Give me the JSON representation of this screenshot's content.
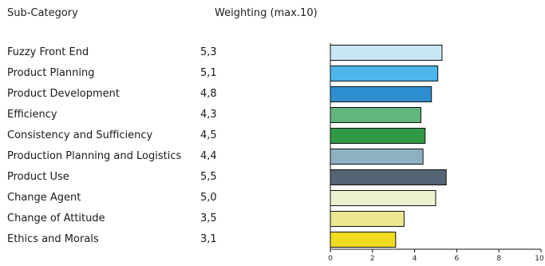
{
  "header": {
    "category_label": "Sub-Category",
    "weighting_label": "Weighting (max.10)"
  },
  "chart_data": {
    "type": "bar",
    "orientation": "horizontal",
    "categories": [
      "Fuzzy Front End",
      "Product Planning",
      "Product Development",
      "Efficiency",
      "Consistency and Sufficiency",
      "Production Planning and Logistics",
      "Product Use",
      "Change Agent",
      "Change of Attitude",
      "Ethics and Morals"
    ],
    "values": [
      5.3,
      5.1,
      4.8,
      4.3,
      4.5,
      4.4,
      5.5,
      5.0,
      3.5,
      3.1
    ],
    "value_labels": [
      "5,3",
      "5,1",
      "4,8",
      "4,3",
      "4,5",
      "4,4",
      "5,5",
      "5,0",
      "3,5",
      "3,1"
    ],
    "colors": [
      "#c9e6f6",
      "#4cb6ea",
      "#2e8fd0",
      "#62b57c",
      "#2f9a45",
      "#8fb0c2",
      "#546474",
      "#eef1cf",
      "#ebe88f",
      "#efdc1f"
    ],
    "xlim": [
      0,
      10
    ],
    "xticks": [
      "0",
      "2",
      "4",
      "6",
      "8",
      "10"
    ],
    "grid": false
  }
}
